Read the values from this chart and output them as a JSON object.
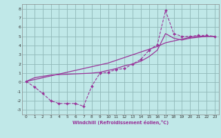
{
  "title": "",
  "xlabel": "Windchill (Refroidissement éolien,°C)",
  "ylabel": "",
  "bg_color": "#c0e8e8",
  "grid_color": "#90b8b8",
  "line_color": "#993399",
  "xlim": [
    -0.5,
    23.5
  ],
  "ylim": [
    -3.5,
    8.5
  ],
  "xticks": [
    0,
    1,
    2,
    3,
    4,
    5,
    6,
    7,
    8,
    9,
    10,
    11,
    12,
    13,
    14,
    15,
    16,
    17,
    18,
    19,
    20,
    21,
    22,
    23
  ],
  "yticks": [
    -3,
    -2,
    -1,
    0,
    1,
    2,
    3,
    4,
    5,
    6,
    7,
    8
  ],
  "line1_x": [
    0,
    1,
    2,
    3,
    4,
    5,
    6,
    7,
    8,
    9,
    10,
    11,
    12,
    13,
    14,
    15,
    16,
    17,
    18,
    19,
    20,
    21,
    22,
    23
  ],
  "line1_y": [
    0.1,
    -0.5,
    -1.2,
    -2.0,
    -2.3,
    -2.3,
    -2.3,
    -2.6,
    -0.4,
    1.0,
    1.1,
    1.4,
    1.5,
    2.0,
    2.5,
    3.5,
    4.1,
    7.8,
    5.3,
    5.0,
    5.0,
    5.1,
    5.1,
    5.0
  ],
  "line2_x": [
    0,
    1,
    3,
    8,
    9,
    10,
    11,
    12,
    13,
    14,
    15,
    16,
    17,
    18,
    19,
    20,
    21,
    22,
    23
  ],
  "line2_y": [
    0.1,
    0.5,
    0.8,
    1.0,
    1.1,
    1.3,
    1.5,
    1.8,
    2.0,
    2.3,
    2.8,
    3.5,
    5.3,
    4.8,
    4.6,
    4.8,
    4.9,
    5.0,
    5.0
  ],
  "line3_x": [
    0,
    1,
    2,
    3,
    4,
    5,
    6,
    7,
    8,
    9,
    10,
    11,
    12,
    13,
    14,
    15,
    16,
    17,
    18,
    19,
    20,
    21,
    22,
    23
  ],
  "line3_y": [
    0.1,
    0.3,
    0.5,
    0.7,
    0.9,
    1.1,
    1.3,
    1.5,
    1.7,
    1.9,
    2.1,
    2.4,
    2.7,
    3.0,
    3.3,
    3.6,
    3.9,
    4.3,
    4.5,
    4.7,
    4.9,
    5.0,
    5.0,
    5.0
  ]
}
